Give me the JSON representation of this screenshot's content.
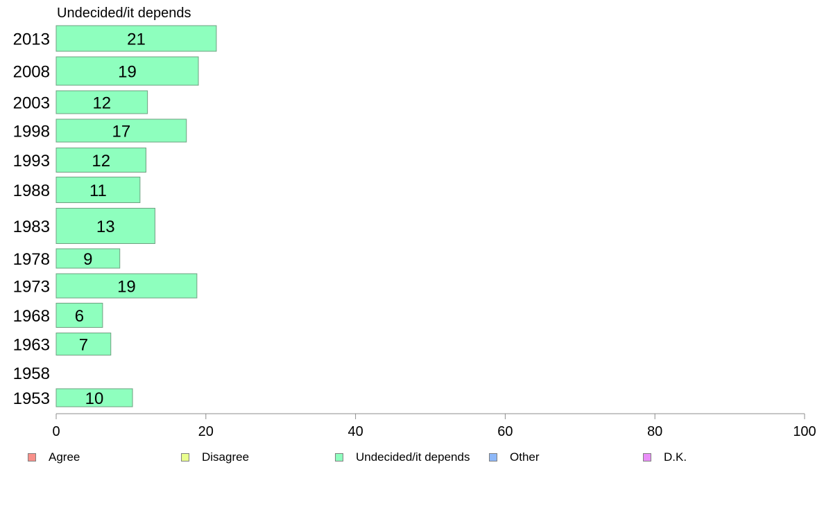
{
  "chart_data": {
    "type": "bar",
    "orientation": "horizontal",
    "title": "Undecided/it depends",
    "categories": [
      "2013",
      "2008",
      "2003",
      "1998",
      "1993",
      "1988",
      "1983",
      "1978",
      "1973",
      "1968",
      "1963",
      "1958",
      "1953"
    ],
    "series": [
      {
        "name": "Undecided/it depends",
        "values": [
          21.4,
          19,
          12.2,
          17.4,
          12,
          11.2,
          13.2,
          8.5,
          18.8,
          6.2,
          7.3,
          null,
          10.2
        ],
        "labels": [
          "21",
          "19",
          "12",
          "17",
          "12",
          "11",
          "13",
          "9",
          "19",
          "6",
          "7",
          "",
          "10"
        ],
        "color": "#8effbe"
      }
    ],
    "xlim": [
      0,
      100
    ],
    "xticks": [
      "0",
      "20",
      "40",
      "60",
      "80",
      "100"
    ],
    "grid": false,
    "legend": {
      "placement": "bottom",
      "items": [
        {
          "label": "Agree",
          "color": "#f8908a"
        },
        {
          "label": "Disagree",
          "color": "#e9ff8e"
        },
        {
          "label": "Undecided/it depends",
          "color": "#8effbe"
        },
        {
          "label": "Other",
          "color": "#8eb8f8"
        },
        {
          "label": "D.K.",
          "color": "#e98ef8"
        }
      ]
    }
  }
}
